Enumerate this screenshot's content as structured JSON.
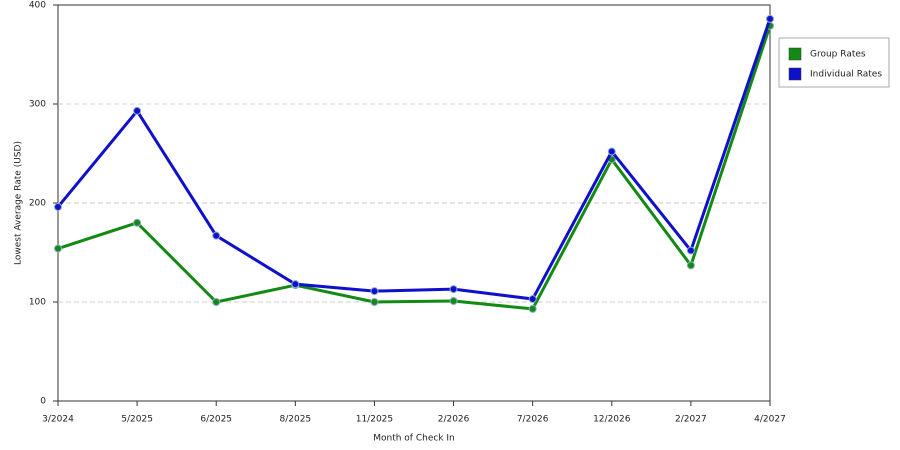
{
  "chart_data": {
    "type": "line",
    "x_label": "Month of Check In",
    "y_label": "Lowest Average Rate (USD)",
    "categories": [
      "3/2024",
      "5/2025",
      "6/2025",
      "8/2025",
      "11/2025",
      "2/2026",
      "7/2026",
      "12/2026",
      "2/2027",
      "4/2027"
    ],
    "series": [
      {
        "name": "Group Rates",
        "color": "#138a13",
        "values": [
          154,
          180,
          100,
          117,
          100,
          101,
          93,
          244,
          137,
          379
        ]
      },
      {
        "name": "Individual Rates",
        "color": "#1010cc",
        "values": [
          196,
          293,
          167,
          118,
          111,
          113,
          103,
          252,
          152,
          386
        ]
      }
    ],
    "ylim": [
      0,
      400
    ],
    "yticks": [
      0,
      100,
      200,
      300,
      400
    ],
    "grid": true
  }
}
